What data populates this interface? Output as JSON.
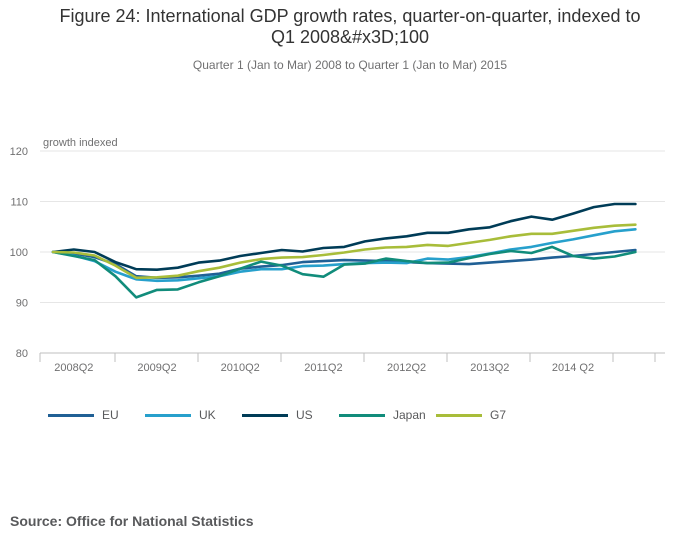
{
  "header": {
    "title_line1": "Figure 24: International GDP growth rates, quarter-on-quarter, indexed to",
    "title_line2": "Q1 2008&#x3D;100",
    "subtitle": "Quarter 1 (Jan to Mar) 2008 to Quarter 1 (Jan to Mar) 2015"
  },
  "footer": {
    "source": "Source: Office for National Statistics"
  },
  "chart_data": {
    "type": "line",
    "ylabel": "growth indexed",
    "ylim": [
      80,
      120
    ],
    "yticks": [
      80,
      90,
      100,
      110,
      120
    ],
    "xlabels": [
      "2008Q2",
      "2009Q2",
      "2010Q2",
      "2011Q2",
      "2012Q2",
      "2013Q2",
      "2014 Q2"
    ],
    "xlabel_index": [
      1,
      5,
      9,
      13,
      17,
      21,
      25
    ],
    "grid": true,
    "legend_position": "bottom",
    "x": [
      "2008Q1",
      "2008Q2",
      "2008Q3",
      "2008Q4",
      "2009Q1",
      "2009Q2",
      "2009Q3",
      "2009Q4",
      "2010Q1",
      "2010Q2",
      "2010Q3",
      "2010Q4",
      "2011Q1",
      "2011Q2",
      "2011Q3",
      "2011Q4",
      "2012Q1",
      "2012Q2",
      "2012Q3",
      "2012Q4",
      "2013Q1",
      "2013Q2",
      "2013Q3",
      "2013Q4",
      "2014Q1",
      "2014Q2",
      "2014Q3",
      "2014Q4",
      "2015Q1"
    ],
    "series": [
      {
        "name": "EU",
        "color": "#206095",
        "values": [
          100,
          99.7,
          99.0,
          97.6,
          95.2,
          94.9,
          95.0,
          95.3,
          95.7,
          96.7,
          97.1,
          97.4,
          98.0,
          98.2,
          98.4,
          98.3,
          98.2,
          98.0,
          97.8,
          97.7,
          97.6,
          97.9,
          98.2,
          98.5,
          98.9,
          99.2,
          99.6,
          100.0,
          100.4
        ]
      },
      {
        "name": "UK",
        "color": "#27a0cc",
        "values": [
          100,
          99.3,
          98.2,
          96.1,
          94.6,
          94.3,
          94.4,
          94.8,
          95.2,
          96.1,
          96.6,
          96.6,
          97.2,
          97.3,
          97.6,
          97.8,
          97.9,
          97.8,
          98.7,
          98.5,
          99.0,
          99.7,
          100.5,
          101.0,
          101.8,
          102.5,
          103.3,
          104.1,
          104.5
        ]
      },
      {
        "name": "US",
        "color": "#003c57",
        "values": [
          100,
          100.5,
          100.0,
          98.0,
          96.6,
          96.5,
          96.9,
          97.9,
          98.3,
          99.2,
          99.8,
          100.4,
          100.1,
          100.8,
          101.0,
          102.1,
          102.7,
          103.1,
          103.8,
          103.8,
          104.5,
          104.9,
          106.1,
          107.0,
          106.4,
          107.6,
          108.9,
          109.5,
          109.5
        ]
      },
      {
        "name": "Japan",
        "color": "#118c7b",
        "values": [
          100,
          99.2,
          98.4,
          95.2,
          91.0,
          92.5,
          92.6,
          94.0,
          95.2,
          96.7,
          98.1,
          97.3,
          95.6,
          95.1,
          97.5,
          97.7,
          98.7,
          98.2,
          97.8,
          97.9,
          98.8,
          99.6,
          100.2,
          99.8,
          101.0,
          99.2,
          98.7,
          99.1,
          100.0
        ]
      },
      {
        "name": "G7",
        "color": "#a8bd3a",
        "values": [
          100,
          99.9,
          99.3,
          97.3,
          94.9,
          95.0,
          95.3,
          96.2,
          96.9,
          97.9,
          98.6,
          98.9,
          99.0,
          99.4,
          99.9,
          100.5,
          100.9,
          101.0,
          101.4,
          101.2,
          101.8,
          102.4,
          103.1,
          103.6,
          103.6,
          104.2,
          104.8,
          105.2,
          105.4
        ]
      }
    ]
  }
}
